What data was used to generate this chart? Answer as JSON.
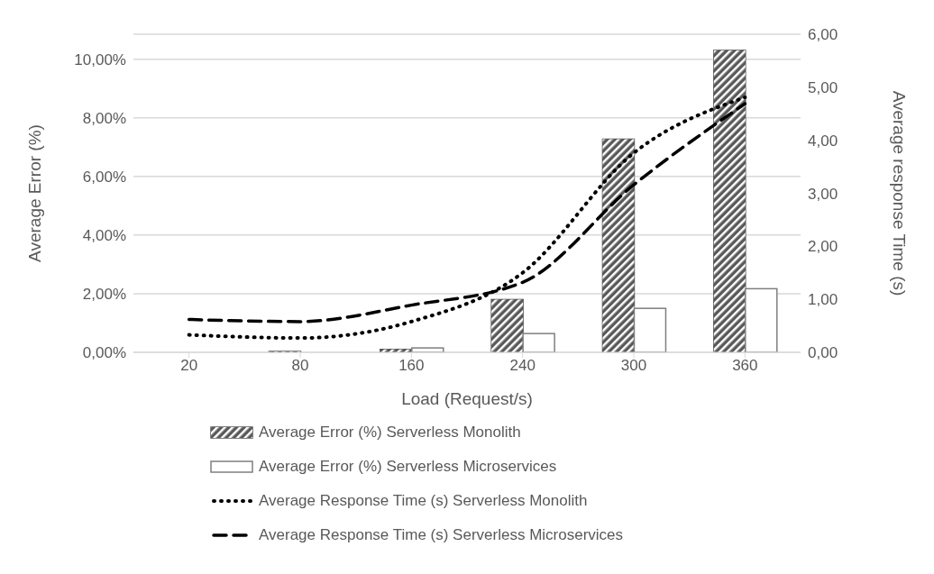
{
  "chart_data": {
    "type": "bar",
    "xlabel": "Load (Request/s)",
    "ylabel": "Average Error (%)",
    "y2label": "Average response Time (s)",
    "categories": [
      "20",
      "80",
      "160",
      "240",
      "300",
      "360"
    ],
    "series": [
      {
        "name": "Average Error (%) Serverless Monolith",
        "color": "#595959",
        "values": [
          null,
          0.03,
          0.1,
          1.8,
          7.27,
          10.3
        ]
      },
      {
        "name": "Average Error (%) Serverless Microservices",
        "color": "#ffffff",
        "values": [
          null,
          null,
          0.15,
          0.64,
          1.5,
          2.17
        ]
      },
      {
        "name": "Average Response Time (s) Serverless Monolith",
        "type": "line",
        "axis": "y2",
        "color": "#000000",
        "line_style": "dotted",
        "values": [
          0.33,
          0.27,
          0.58,
          1.5,
          3.76,
          4.81
        ]
      },
      {
        "name": "Average Response Time (s) Serverless Microservices",
        "type": "line",
        "axis": "y2",
        "color": "#000000",
        "line_style": "dashed",
        "values": [
          0.62,
          0.58,
          0.89,
          1.32,
          3.16,
          4.69
        ]
      }
    ],
    "ylim": [
      0,
      10.85
    ],
    "yticks": [
      {
        "value": 0,
        "label": "0,00%"
      },
      {
        "value": 2,
        "label": "2,00%"
      },
      {
        "value": 4,
        "label": "4,00%"
      },
      {
        "value": 6,
        "label": "6,00%"
      },
      {
        "value": 8,
        "label": "8,00%"
      },
      {
        "value": 10,
        "label": "10,00%"
      }
    ],
    "y2lim": [
      0,
      6
    ],
    "y2ticks": [
      {
        "value": 0,
        "label": "0,00"
      },
      {
        "value": 1,
        "label": "1,00"
      },
      {
        "value": 2,
        "label": "2,00"
      },
      {
        "value": 3,
        "label": "3,00"
      },
      {
        "value": 4,
        "label": "4,00"
      },
      {
        "value": 5,
        "label": "5,00"
      },
      {
        "value": 6,
        "label": "6,00"
      }
    ],
    "grid": "y",
    "legend": "bottom",
    "marker": "none"
  }
}
